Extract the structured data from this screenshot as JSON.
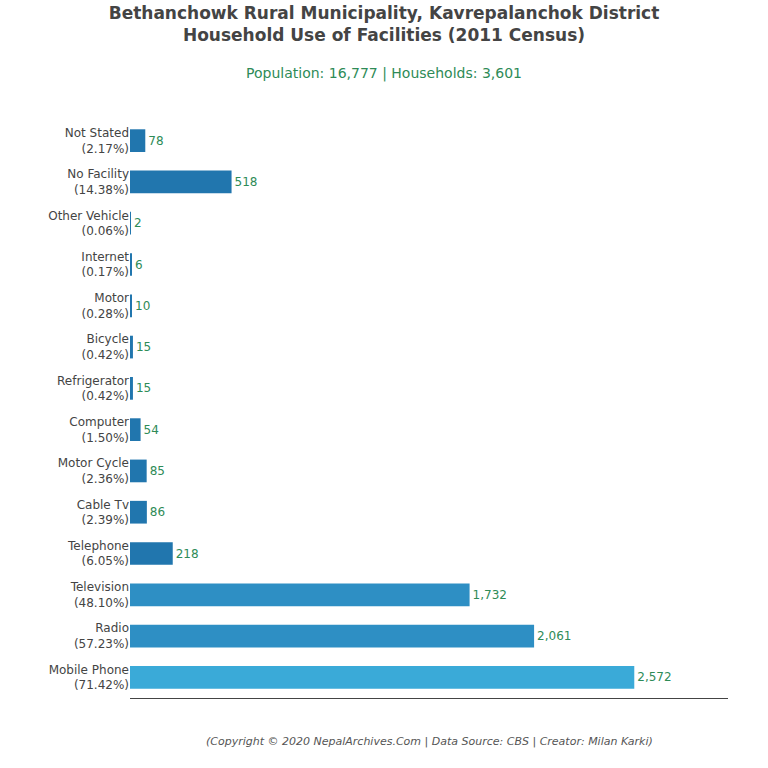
{
  "chart_data": {
    "type": "bar",
    "orientation": "horizontal",
    "title": "Bethanchowk Rural Municipality, Kavrepalanchok District\nHousehold Use of Facilities (2011 Census)",
    "subtitle": "Population: 16,777 | Households: 3,601",
    "annotations": [
      "(Copyright © 2020 NepalArchives.Com | Data Source: CBS | Creator: Milan Karki)"
    ],
    "categories": [
      "Not Stated\n(2.17%)",
      "No Facility\n(14.38%)",
      "Other Vehicle\n(0.06%)",
      "Internet\n(0.17%)",
      "Motor\n(0.28%)",
      "Bicycle\n(0.42%)",
      "Refrigerator\n(0.42%)",
      "Computer\n(1.50%)",
      "Motor Cycle\n(2.36%)",
      "Cable Tv\n(2.39%)",
      "Telephone\n(6.05%)",
      "Television\n(48.10%)",
      "Radio\n(57.23%)",
      "Mobile Phone\n(71.42%)"
    ],
    "values": [
      78,
      518,
      2,
      6,
      10,
      15,
      15,
      54,
      85,
      86,
      218,
      1732,
      2061,
      2572
    ],
    "value_labels": [
      "78",
      "518",
      "2",
      "6",
      "10",
      "15",
      "15",
      "54",
      "85",
      "86",
      "218",
      "1,732",
      "2,061",
      "2,572"
    ],
    "data_labels": true,
    "colors": [
      "#2176ae",
      "#2176ae",
      "#2176ae",
      "#2176ae",
      "#2176ae",
      "#2176ae",
      "#2176ae",
      "#2176ae",
      "#2176ae",
      "#2176ae",
      "#2176ae",
      "#2e8fc4",
      "#2e8fc4",
      "#3aaad8"
    ],
    "xlim": [
      0,
      3050
    ],
    "tick_labels": "y",
    "grid": false
  }
}
